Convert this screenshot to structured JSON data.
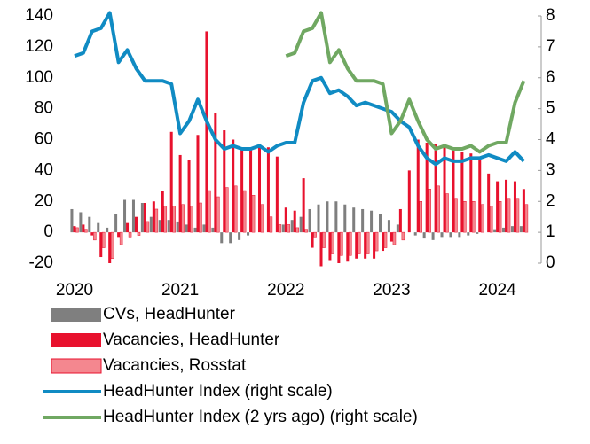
{
  "chart_data": {
    "type": "bar",
    "categories": [
      "2020",
      null,
      null,
      null,
      null,
      null,
      null,
      null,
      null,
      null,
      null,
      null,
      "2021",
      null,
      null,
      null,
      null,
      null,
      null,
      null,
      null,
      null,
      null,
      null,
      "2022",
      null,
      null,
      null,
      null,
      null,
      null,
      null,
      null,
      null,
      null,
      null,
      "2023",
      null,
      null,
      null,
      null,
      null,
      null,
      null,
      null,
      null,
      null,
      null,
      "2024",
      null,
      null,
      null
    ],
    "ylim": [
      -20,
      140
    ],
    "yticks": [
      -20,
      0,
      20,
      40,
      60,
      80,
      100,
      120,
      140
    ],
    "y2lim": [
      0,
      8
    ],
    "y2ticks": [
      0,
      1,
      2,
      3,
      4,
      5,
      6,
      7,
      8
    ],
    "grid": false,
    "series": [
      {
        "name": "CVs, HeadHunter",
        "type": "bar",
        "color": "#7f7f7f",
        "values": [
          15,
          13,
          10,
          6,
          3,
          12,
          21,
          21,
          19,
          10,
          8,
          8,
          7,
          5,
          3,
          5,
          3,
          -7,
          -7,
          -5,
          -2,
          0,
          0,
          0,
          5,
          8,
          10,
          15,
          18,
          20,
          20,
          18,
          16,
          15,
          14,
          12,
          8,
          5,
          0,
          -2,
          -4,
          -5,
          -3,
          -3,
          -3,
          -2,
          -1,
          0,
          2,
          3,
          4,
          4
        ]
      },
      {
        "name": "Vacancies, HeadHunter",
        "type": "bar",
        "color": "#e8112d",
        "values": [
          4,
          5,
          -2,
          -16,
          -20,
          -3,
          6,
          10,
          19,
          20,
          27,
          65,
          50,
          47,
          63,
          130,
          77,
          66,
          60,
          55,
          55,
          55,
          55,
          49,
          16,
          14,
          35,
          -10,
          -22,
          -18,
          -20,
          -19,
          -17,
          -17,
          -17,
          -12,
          -6,
          15,
          40,
          60,
          58,
          57,
          55,
          53,
          52,
          51,
          49,
          38,
          33,
          34,
          33,
          28
        ]
      },
      {
        "name": "Vacancies, Rosstat",
        "type": "bar",
        "color": "#f4878f",
        "edgecolor": "#e8112d",
        "values": [
          3,
          2,
          -5,
          -10,
          -17,
          -8,
          -3,
          -2,
          7,
          15,
          17,
          17,
          18,
          17,
          19,
          27,
          23,
          29,
          30,
          27,
          24,
          18,
          10,
          5,
          5,
          3,
          2,
          -3,
          -10,
          -14,
          -15,
          -15,
          -14,
          -14,
          -12,
          -10,
          -8,
          -5,
          0,
          20,
          28,
          30,
          25,
          22,
          20,
          20,
          18,
          17,
          20,
          22,
          22,
          18
        ]
      },
      {
        "name": "HeadHunter Index (right scale)",
        "type": "line",
        "axis": "y2",
        "color": "#108bc3",
        "values": [
          6.7,
          6.8,
          7.5,
          7.6,
          8.1,
          6.5,
          6.9,
          6.3,
          5.9,
          5.9,
          5.9,
          5.8,
          4.2,
          4.6,
          5.3,
          4.6,
          4.0,
          3.7,
          3.8,
          3.7,
          3.7,
          3.8,
          3.6,
          3.8,
          3.9,
          3.9,
          5.2,
          5.9,
          6.0,
          5.5,
          5.6,
          5.4,
          5.1,
          5.2,
          5.1,
          5.0,
          4.9,
          4.6,
          4.4,
          3.8,
          3.4,
          3.2,
          3.4,
          3.3,
          3.3,
          3.4,
          3.4,
          3.5,
          3.4,
          3.3,
          3.6,
          3.3
        ]
      },
      {
        "name": "HeadHunter Index (2 yrs ago) (right scale)",
        "type": "line",
        "axis": "y2",
        "color": "#70a862",
        "values": [
          null,
          null,
          null,
          null,
          null,
          null,
          null,
          null,
          null,
          null,
          null,
          null,
          null,
          null,
          null,
          null,
          null,
          null,
          null,
          null,
          null,
          null,
          null,
          null,
          6.7,
          6.8,
          7.5,
          7.6,
          8.1,
          6.5,
          6.9,
          6.3,
          5.9,
          5.9,
          5.9,
          5.8,
          4.2,
          4.6,
          5.3,
          4.6,
          4.0,
          3.7,
          3.8,
          3.7,
          3.7,
          3.8,
          3.6,
          3.8,
          3.9,
          3.9,
          5.2,
          5.9
        ]
      }
    ]
  }
}
